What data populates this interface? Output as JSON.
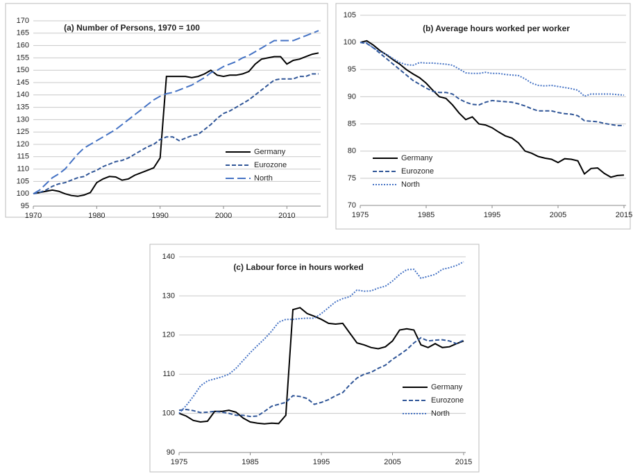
{
  "chart_data": [
    {
      "type": "line",
      "title": "(a) Number of Persons,  1970 = 100",
      "x": [
        1970,
        1971,
        1972,
        1973,
        1974,
        1975,
        1976,
        1977,
        1978,
        1979,
        1980,
        1981,
        1982,
        1983,
        1984,
        1985,
        1986,
        1987,
        1988,
        1989,
        1990,
        1991,
        1992,
        1993,
        1994,
        1995,
        1996,
        1997,
        1998,
        1999,
        2000,
        2001,
        2002,
        2003,
        2004,
        2005,
        2006,
        2007,
        2008,
        2009,
        2010,
        2011,
        2012,
        2013,
        2014,
        2015
      ],
      "series": [
        {
          "name": "Germany",
          "color": "#000000",
          "dash": "solid",
          "values": [
            100,
            100.5,
            101,
            101.5,
            101,
            100,
            99.3,
            99,
            99.5,
            100.5,
            104.5,
            106,
            107,
            106.8,
            105.5,
            106,
            107.5,
            108.5,
            109.5,
            110.5,
            114.5,
            147.5,
            147.5,
            147.5,
            147.5,
            147,
            147.5,
            148.5,
            150,
            148,
            147.5,
            148,
            148,
            148.5,
            149.5,
            152.5,
            154.5,
            155,
            155.5,
            155.5,
            152.5,
            154,
            154.5,
            155.5,
            156.5,
            157
          ]
        },
        {
          "name": "Eurozone",
          "color": "#2f5597",
          "dash": "dash",
          "values": [
            100,
            100.5,
            101.5,
            103,
            104,
            104.5,
            105.5,
            106.5,
            107,
            108.5,
            109.5,
            111,
            112,
            113,
            113.5,
            114.5,
            116,
            117.5,
            119,
            120,
            122,
            123,
            123,
            121.5,
            122.5,
            123.5,
            124,
            126,
            128,
            130.5,
            132.5,
            133.5,
            135,
            136.5,
            138,
            140,
            142,
            144,
            146,
            146.5,
            146.5,
            146.5,
            147.5,
            147.5,
            148.5,
            148.5
          ]
        },
        {
          "name": "North",
          "color": "#4472c4",
          "dash": "longdash",
          "values": [
            100,
            101.5,
            104,
            106.5,
            108,
            110,
            113,
            116,
            118.5,
            120,
            121.5,
            123,
            124.5,
            126,
            128,
            130,
            132,
            134,
            136,
            138,
            139.5,
            140.5,
            141,
            142,
            143,
            144,
            145.5,
            147,
            149,
            150,
            151.5,
            152.5,
            153.5,
            155,
            156,
            157.5,
            159,
            160.5,
            162,
            162,
            162,
            162,
            163,
            164,
            165,
            166
          ]
        }
      ],
      "xlim": [
        1970,
        2015
      ],
      "xticks": [
        1970,
        1980,
        1990,
        2000,
        2010
      ],
      "ylim": [
        95,
        170
      ],
      "yticks": [
        95,
        100,
        105,
        110,
        115,
        120,
        125,
        130,
        135,
        140,
        145,
        150,
        155,
        160,
        165,
        170
      ],
      "grid": true,
      "legend": "lower right"
    },
    {
      "type": "line",
      "title": "(b) Average hours worked per worker",
      "x": [
        1975,
        1976,
        1977,
        1978,
        1979,
        1980,
        1981,
        1982,
        1983,
        1984,
        1985,
        1986,
        1987,
        1988,
        1989,
        1990,
        1991,
        1992,
        1993,
        1994,
        1995,
        1996,
        1997,
        1998,
        1999,
        2000,
        2001,
        2002,
        2003,
        2004,
        2005,
        2006,
        2007,
        2008,
        2009,
        2010,
        2011,
        2012,
        2013,
        2014,
        2015
      ],
      "series": [
        {
          "name": "Germany",
          "color": "#000000",
          "dash": "solid",
          "values": [
            100,
            100.3,
            99.5,
            98.5,
            97.7,
            96.8,
            96,
            95,
            94.2,
            93.5,
            92.5,
            91.2,
            90,
            89.7,
            88.5,
            87,
            85.8,
            86.3,
            85,
            84.8,
            84.3,
            83.5,
            82.8,
            82.4,
            81.5,
            80,
            79.6,
            79,
            78.7,
            78.5,
            77.9,
            78.6,
            78.5,
            78.2,
            75.8,
            76.8,
            76.9,
            75.9,
            75.2,
            75.5,
            75.6
          ]
        },
        {
          "name": "Eurozone",
          "color": "#2f5597",
          "dash": "dash",
          "values": [
            100,
            99.8,
            99,
            98,
            97,
            96,
            95,
            94,
            93,
            92.3,
            91.6,
            91,
            90.8,
            90.8,
            90.5,
            89.6,
            89,
            88.6,
            88.5,
            89,
            89.3,
            89.2,
            89.1,
            89,
            88.7,
            88.3,
            87.8,
            87.4,
            87.4,
            87.4,
            87.1,
            86.9,
            86.8,
            86.5,
            85.6,
            85.5,
            85.4,
            85.1,
            84.9,
            84.7,
            84.7
          ]
        },
        {
          "name": "North",
          "color": "#4472c4",
          "dash": "dot",
          "values": [
            100,
            99.9,
            99,
            98.3,
            97.8,
            97,
            96.3,
            95.9,
            95.8,
            96.3,
            96.2,
            96.2,
            96.1,
            96,
            95.8,
            95.1,
            94.4,
            94.3,
            94.3,
            94.5,
            94.3,
            94.3,
            94.1,
            94,
            93.9,
            93.3,
            92.5,
            92.1,
            92,
            92.1,
            91.9,
            91.7,
            91.5,
            91.2,
            90.1,
            90.5,
            90.5,
            90.5,
            90.5,
            90.4,
            90.3
          ]
        }
      ],
      "xlim": [
        1975,
        2015
      ],
      "xticks": [
        1975,
        1985,
        1995,
        2005,
        2015
      ],
      "ylim": [
        70,
        105
      ],
      "yticks": [
        70,
        75,
        80,
        85,
        90,
        95,
        100,
        105
      ],
      "grid": true,
      "legend": "lower left"
    },
    {
      "type": "line",
      "title": "(c) Labour force in hours worked",
      "x": [
        1975,
        1976,
        1977,
        1978,
        1979,
        1980,
        1981,
        1982,
        1983,
        1984,
        1985,
        1986,
        1987,
        1988,
        1989,
        1990,
        1991,
        1992,
        1993,
        1994,
        1995,
        1996,
        1997,
        1998,
        1999,
        2000,
        2001,
        2002,
        2003,
        2004,
        2005,
        2006,
        2007,
        2008,
        2009,
        2010,
        2011,
        2012,
        2013,
        2014,
        2015
      ],
      "series": [
        {
          "name": "Germany",
          "color": "#000000",
          "dash": "solid",
          "values": [
            100,
            99.3,
            98.2,
            97.8,
            98,
            100.5,
            100.5,
            100.8,
            100.3,
            98.8,
            97.8,
            97.5,
            97.3,
            97.5,
            97.4,
            99.5,
            126.5,
            127,
            125.5,
            124.8,
            124,
            123,
            122.8,
            123,
            120.5,
            118,
            117.5,
            116.8,
            116.5,
            117,
            118.5,
            121.3,
            121.6,
            121.3,
            117.5,
            116.8,
            117.8,
            116.8,
            117,
            117.8,
            118.5
          ]
        },
        {
          "name": "Eurozone",
          "color": "#2f5597",
          "dash": "dash",
          "values": [
            100.8,
            101,
            100.7,
            100.2,
            100.3,
            100.5,
            100.3,
            100,
            99.5,
            99.5,
            99.2,
            99.3,
            100.5,
            101.8,
            102.3,
            102.8,
            104.5,
            104.3,
            103.8,
            102.3,
            102.8,
            103.5,
            104.5,
            105.3,
            107.3,
            109,
            110,
            110.5,
            111.5,
            112.3,
            113.8,
            115,
            116.3,
            118,
            119.3,
            118.5,
            118.7,
            118.8,
            118.5,
            117.8,
            118.7
          ]
        },
        {
          "name": "North",
          "color": "#4472c4",
          "dash": "dot",
          "values": [
            100,
            102,
            104.3,
            107,
            108.3,
            108.8,
            109.3,
            110,
            111.5,
            113.5,
            115.5,
            117.3,
            119,
            121,
            123.3,
            124,
            124,
            124.2,
            124.3,
            124.3,
            125.5,
            127,
            128.5,
            129.3,
            129.8,
            131.5,
            131.2,
            131.3,
            132,
            132.5,
            133.8,
            135.5,
            136.7,
            136.8,
            134.5,
            135,
            135.5,
            136.8,
            137.2,
            137.8,
            138.7
          ]
        }
      ],
      "xlim": [
        1975,
        2015
      ],
      "xticks": [
        1975,
        1985,
        1995,
        2005,
        2015
      ],
      "ylim": [
        90,
        140
      ],
      "yticks": [
        90,
        100,
        110,
        120,
        130,
        140
      ],
      "grid": true,
      "legend": "lower right"
    }
  ]
}
